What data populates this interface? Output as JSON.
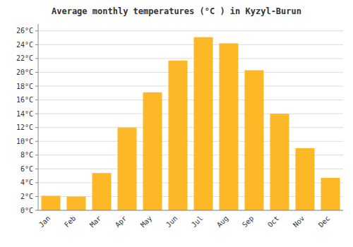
{
  "chart_data": {
    "type": "bar",
    "title": "Average monthly temperatures (°C ) in Kyzyl-Burun",
    "categories": [
      "Jan",
      "Feb",
      "Mar",
      "Apr",
      "May",
      "Jun",
      "Jul",
      "Aug",
      "Sep",
      "Oct",
      "Nov",
      "Dec"
    ],
    "values": [
      2.1,
      2.0,
      5.4,
      12.0,
      17.1,
      21.7,
      25.1,
      24.2,
      20.3,
      14.0,
      9.0,
      4.7
    ],
    "color": "#FDB827",
    "ylim": [
      0,
      27
    ],
    "yticks": [
      {
        "value": 0,
        "label": "0°C"
      },
      {
        "value": 2,
        "label": "2°C"
      },
      {
        "value": 4,
        "label": "4°C"
      },
      {
        "value": 6,
        "label": "6°C"
      },
      {
        "value": 8,
        "label": "8°C"
      },
      {
        "value": 10,
        "label": "10°C"
      },
      {
        "value": 12,
        "label": "12°C"
      },
      {
        "value": 14,
        "label": "14°C"
      },
      {
        "value": 16,
        "label": "16°C"
      },
      {
        "value": 18,
        "label": "18°C"
      },
      {
        "value": 20,
        "label": "20°C"
      },
      {
        "value": 22,
        "label": "22°C"
      },
      {
        "value": 24,
        "label": "24°C"
      },
      {
        "value": 26,
        "label": "26°C"
      }
    ],
    "grid": true
  }
}
